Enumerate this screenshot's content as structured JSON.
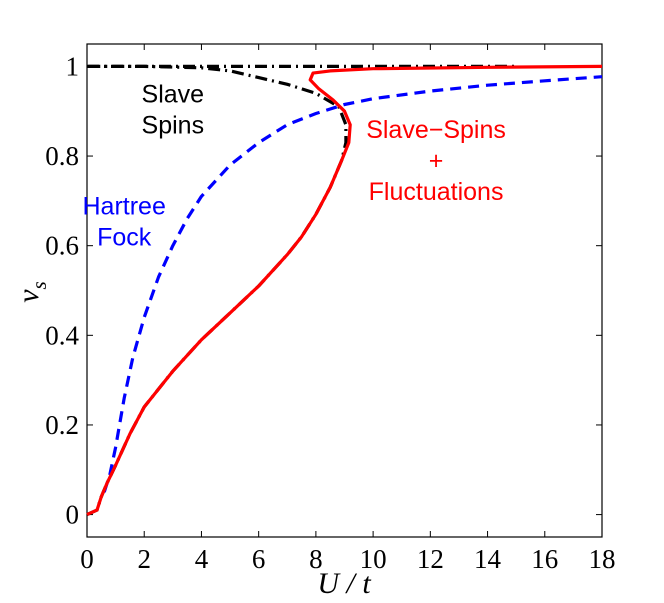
{
  "chart_data": {
    "type": "line",
    "title": "",
    "xlabel": "U / t",
    "ylabel": "ν_s",
    "xlim": [
      0,
      18
    ],
    "ylim": [
      -0.05,
      1.05
    ],
    "xticks": [
      0,
      2,
      4,
      6,
      8,
      10,
      12,
      14,
      16,
      18
    ],
    "yticks": [
      0,
      0.2,
      0.4,
      0.6,
      0.8,
      1
    ],
    "x_tick_labels": [
      "0",
      "2",
      "4",
      "6",
      "8",
      "10",
      "12",
      "14",
      "16",
      "18"
    ],
    "y_tick_labels": [
      "0",
      "0.2",
      "0.4",
      "0.6",
      "0.8",
      "1"
    ],
    "grid": false,
    "legend": "none",
    "series": [
      {
        "color": "#000000",
        "style": "dash-dot",
        "points": [
          [
            0,
            0
          ],
          [
            0.35,
            0.01
          ],
          [
            0.5,
            0.04
          ],
          [
            0.7,
            0.07
          ],
          [
            0.85,
            0.09
          ],
          [
            1.0,
            0.11
          ],
          [
            1.5,
            0.18
          ],
          [
            2.0,
            0.24
          ],
          [
            3.0,
            0.32
          ],
          [
            4.0,
            0.39
          ],
          [
            5.0,
            0.45
          ],
          [
            6.0,
            0.51
          ],
          [
            7.0,
            0.58
          ],
          [
            7.5,
            0.62
          ],
          [
            8.0,
            0.67
          ],
          [
            8.5,
            0.73
          ],
          [
            8.9,
            0.79
          ],
          [
            9.05,
            0.83
          ],
          [
            9.05,
            0.87
          ],
          [
            8.8,
            0.91
          ],
          [
            8.0,
            0.94
          ],
          [
            7.0,
            0.96
          ],
          [
            6.0,
            0.975
          ],
          [
            5.0,
            0.99
          ],
          [
            4.0,
            0.997
          ],
          [
            2.0,
            1.0
          ],
          [
            0,
            1.0
          ]
        ]
      },
      {
        "color": "#000000",
        "style": "dash-dot",
        "points": [
          [
            0,
            1.0
          ],
          [
            15,
            1.0
          ]
        ]
      },
      {
        "color": "#0000ff",
        "style": "dashed",
        "points": [
          [
            0.6,
            0.05
          ],
          [
            0.8,
            0.09
          ],
          [
            1.0,
            0.15
          ],
          [
            1.3,
            0.26
          ],
          [
            1.6,
            0.35
          ],
          [
            2.0,
            0.44
          ],
          [
            2.5,
            0.53
          ],
          [
            3.0,
            0.6
          ],
          [
            3.5,
            0.66
          ],
          [
            4.0,
            0.71
          ],
          [
            5.0,
            0.78
          ],
          [
            6.0,
            0.83
          ],
          [
            7.0,
            0.87
          ],
          [
            8.0,
            0.895
          ],
          [
            9.0,
            0.915
          ],
          [
            10.0,
            0.928
          ],
          [
            12.0,
            0.945
          ],
          [
            14.0,
            0.958
          ],
          [
            16.0,
            0.968
          ],
          [
            18.0,
            0.977
          ]
        ]
      },
      {
        "color": "#ff0000",
        "style": "solid",
        "points": [
          [
            0,
            0
          ],
          [
            0.35,
            0.01
          ],
          [
            0.5,
            0.04
          ],
          [
            0.7,
            0.07
          ],
          [
            0.85,
            0.09
          ],
          [
            1.0,
            0.11
          ],
          [
            1.5,
            0.18
          ],
          [
            2.0,
            0.24
          ],
          [
            3.0,
            0.32
          ],
          [
            4.0,
            0.39
          ],
          [
            5.0,
            0.45
          ],
          [
            6.0,
            0.51
          ],
          [
            7.0,
            0.58
          ],
          [
            7.5,
            0.62
          ],
          [
            8.0,
            0.67
          ],
          [
            8.5,
            0.73
          ],
          [
            8.9,
            0.79
          ],
          [
            9.15,
            0.83
          ],
          [
            9.2,
            0.87
          ],
          [
            9.0,
            0.9
          ],
          [
            8.6,
            0.925
          ],
          [
            8.1,
            0.95
          ],
          [
            7.8,
            0.97
          ],
          [
            7.9,
            0.985
          ],
          [
            8.5,
            0.99
          ],
          [
            10.0,
            0.995
          ],
          [
            14.0,
            0.998
          ],
          [
            18.0,
            1.0
          ]
        ]
      }
    ],
    "annotations": [
      {
        "lines": [
          "Slave",
          "Spins"
        ],
        "color": "#000000",
        "x": 3.0,
        "y": 0.92
      },
      {
        "lines": [
          "Hartree",
          "Fock"
        ],
        "color": "#0000ff",
        "x": 1.3,
        "y": 0.67
      },
      {
        "lines": [
          "Slave−Spins",
          "+",
          "Fluctuations"
        ],
        "color": "#ff0000",
        "x": 12.2,
        "y": 0.84
      }
    ]
  }
}
